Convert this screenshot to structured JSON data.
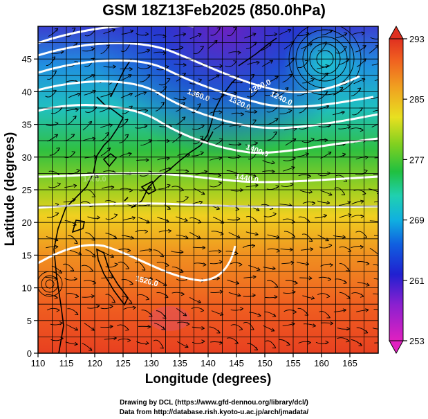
{
  "title": "GSM 18Z13Feb2025 (850.0hPa)",
  "x_axis": {
    "label": "Longitude (degrees)",
    "ticks": [
      "110",
      "115",
      "120",
      "125",
      "130",
      "135",
      "140",
      "145",
      "150",
      "155",
      "160",
      "165"
    ],
    "range": [
      110,
      170
    ]
  },
  "y_axis": {
    "label": "Latitude  (degrees)",
    "ticks": [
      "0",
      "5",
      "10",
      "15",
      "20",
      "25",
      "30",
      "35",
      "40",
      "45"
    ],
    "range": [
      0,
      50
    ]
  },
  "colorbar": {
    "ticks": [
      "253",
      "261",
      "269",
      "277",
      "285",
      "293"
    ],
    "range": [
      253,
      293
    ],
    "colors": [
      "#e020c0",
      "#8a20d0",
      "#2020d0",
      "#1060e0",
      "#10b0e0",
      "#20d0b0",
      "#20c040",
      "#80d020",
      "#e8e020",
      "#f0a020",
      "#f06020",
      "#e03020"
    ]
  },
  "contours": {
    "labels": [
      "1240.0",
      "1280.0",
      "1320.0",
      "1360.0",
      "1400.0",
      "1440.0",
      "1480.0",
      "1520.0"
    ],
    "levels": [
      1240,
      1280,
      1320,
      1360,
      1400,
      1440,
      1480,
      1520
    ]
  },
  "credits": {
    "line1": "Drawing by DCL (https://www.gfd-dennou.org/library/dcl/)",
    "line2": "Data from http://database.rish.kyoto-u.ac.jp/arch/jmadata/"
  }
}
